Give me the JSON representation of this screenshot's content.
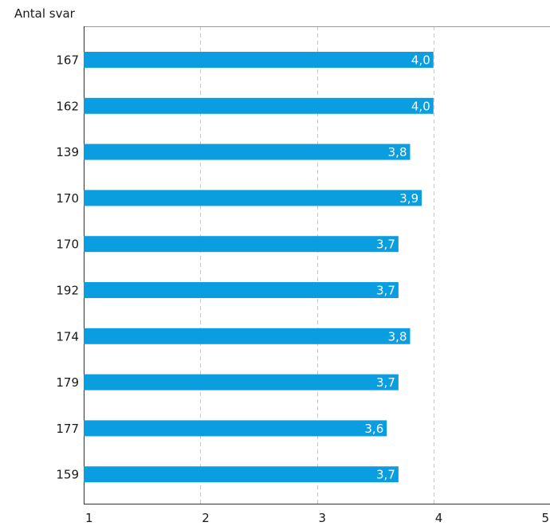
{
  "chart_data": {
    "type": "bar",
    "orientation": "horizontal",
    "categories": [
      "167",
      "162",
      "139",
      "170",
      "170",
      "192",
      "174",
      "179",
      "177",
      "159"
    ],
    "category_axis_title": "Antal svar",
    "values": [
      4.0,
      4.0,
      3.8,
      3.9,
      3.7,
      3.7,
      3.8,
      3.7,
      3.6,
      3.7
    ],
    "value_labels": [
      "4,0",
      "4,0",
      "3,8",
      "3,9",
      "3,7",
      "3,7",
      "3,8",
      "3,7",
      "3,6",
      "3,7"
    ],
    "xlim": [
      1,
      5
    ],
    "xticks": [
      "1",
      "2",
      "3",
      "4",
      "5"
    ],
    "grid": "vertical dashed",
    "bar_color": "#0a9ddf",
    "label_color": "#ffffff"
  }
}
